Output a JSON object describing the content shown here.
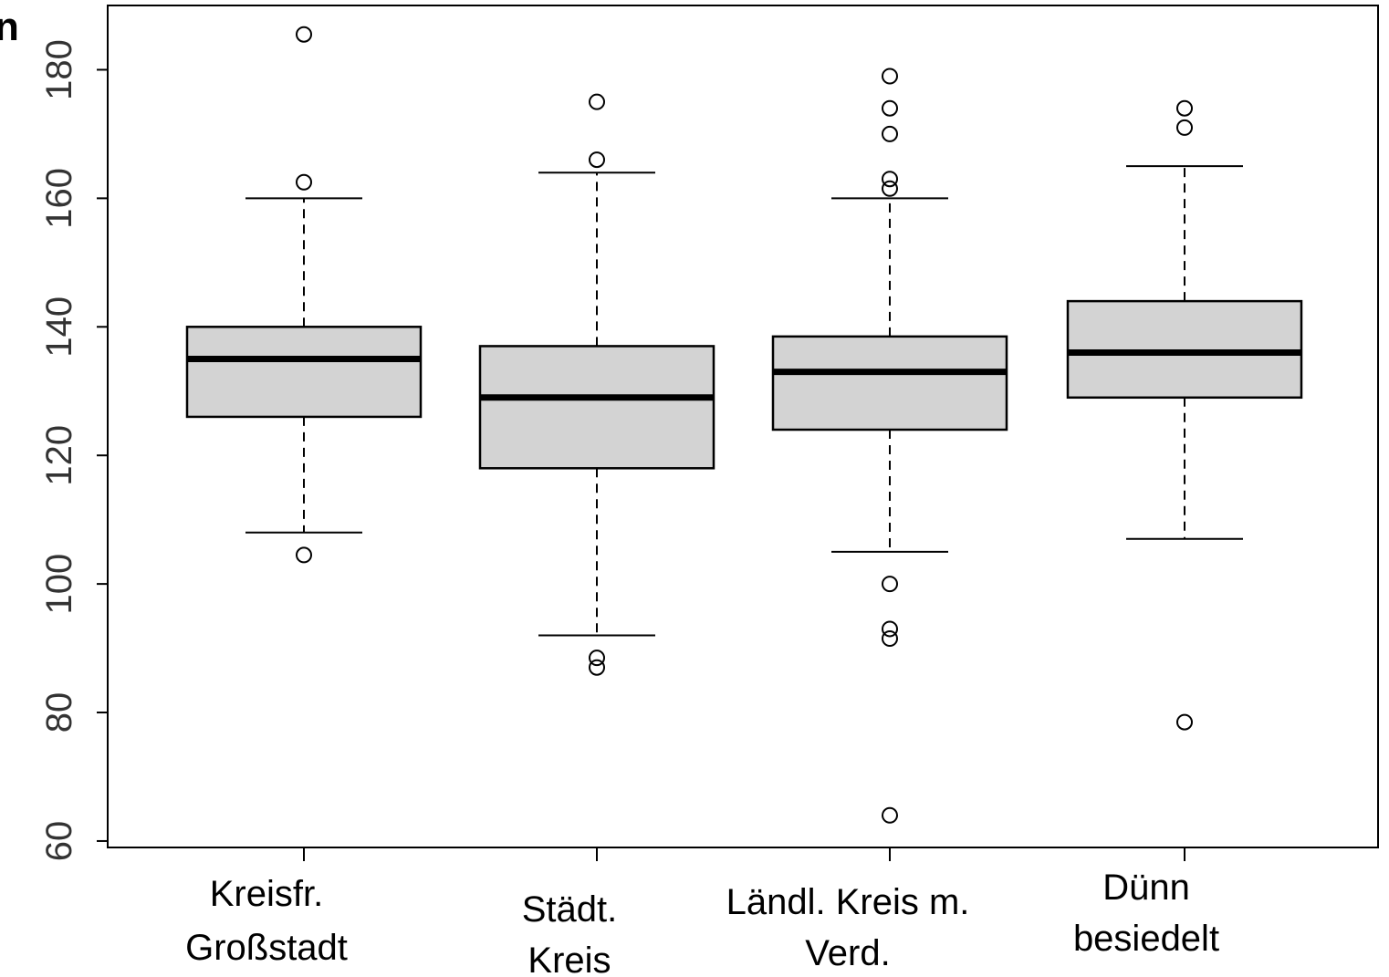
{
  "corner_text": "n",
  "colors": {
    "box_fill": "#d3d3d3",
    "line": "#000000",
    "axis_text": "#333333"
  },
  "chart_data": {
    "type": "boxplot",
    "title": "",
    "xlabel": "",
    "ylabel": "",
    "ylim": [
      59,
      190
    ],
    "yticks": [
      60,
      80,
      100,
      120,
      140,
      160,
      180
    ],
    "grid": false,
    "categories": [
      [
        "Kreisfr.",
        "Großstadt"
      ],
      [
        "Städt.",
        "Kreis"
      ],
      [
        "Ländl. Kreis m.",
        "Verd."
      ],
      [
        "Dünn",
        "besiedelt"
      ]
    ],
    "boxes": [
      {
        "whisker_low": 108,
        "q1": 126,
        "median": 135,
        "q3": 140,
        "whisker_high": 160,
        "outliers": [
          185.5,
          162.5,
          104.5
        ]
      },
      {
        "whisker_low": 92,
        "q1": 118,
        "median": 129,
        "q3": 137,
        "whisker_high": 164,
        "outliers": [
          175,
          166,
          88.5,
          87
        ]
      },
      {
        "whisker_low": 105,
        "q1": 124,
        "median": 133,
        "q3": 138.5,
        "whisker_high": 160,
        "outliers": [
          179,
          174,
          170,
          163,
          161.5,
          100,
          93,
          91.5,
          64
        ]
      },
      {
        "whisker_low": 107,
        "q1": 129,
        "median": 136,
        "q3": 144,
        "whisker_high": 165,
        "outliers": [
          174,
          171,
          78.5
        ]
      }
    ]
  }
}
